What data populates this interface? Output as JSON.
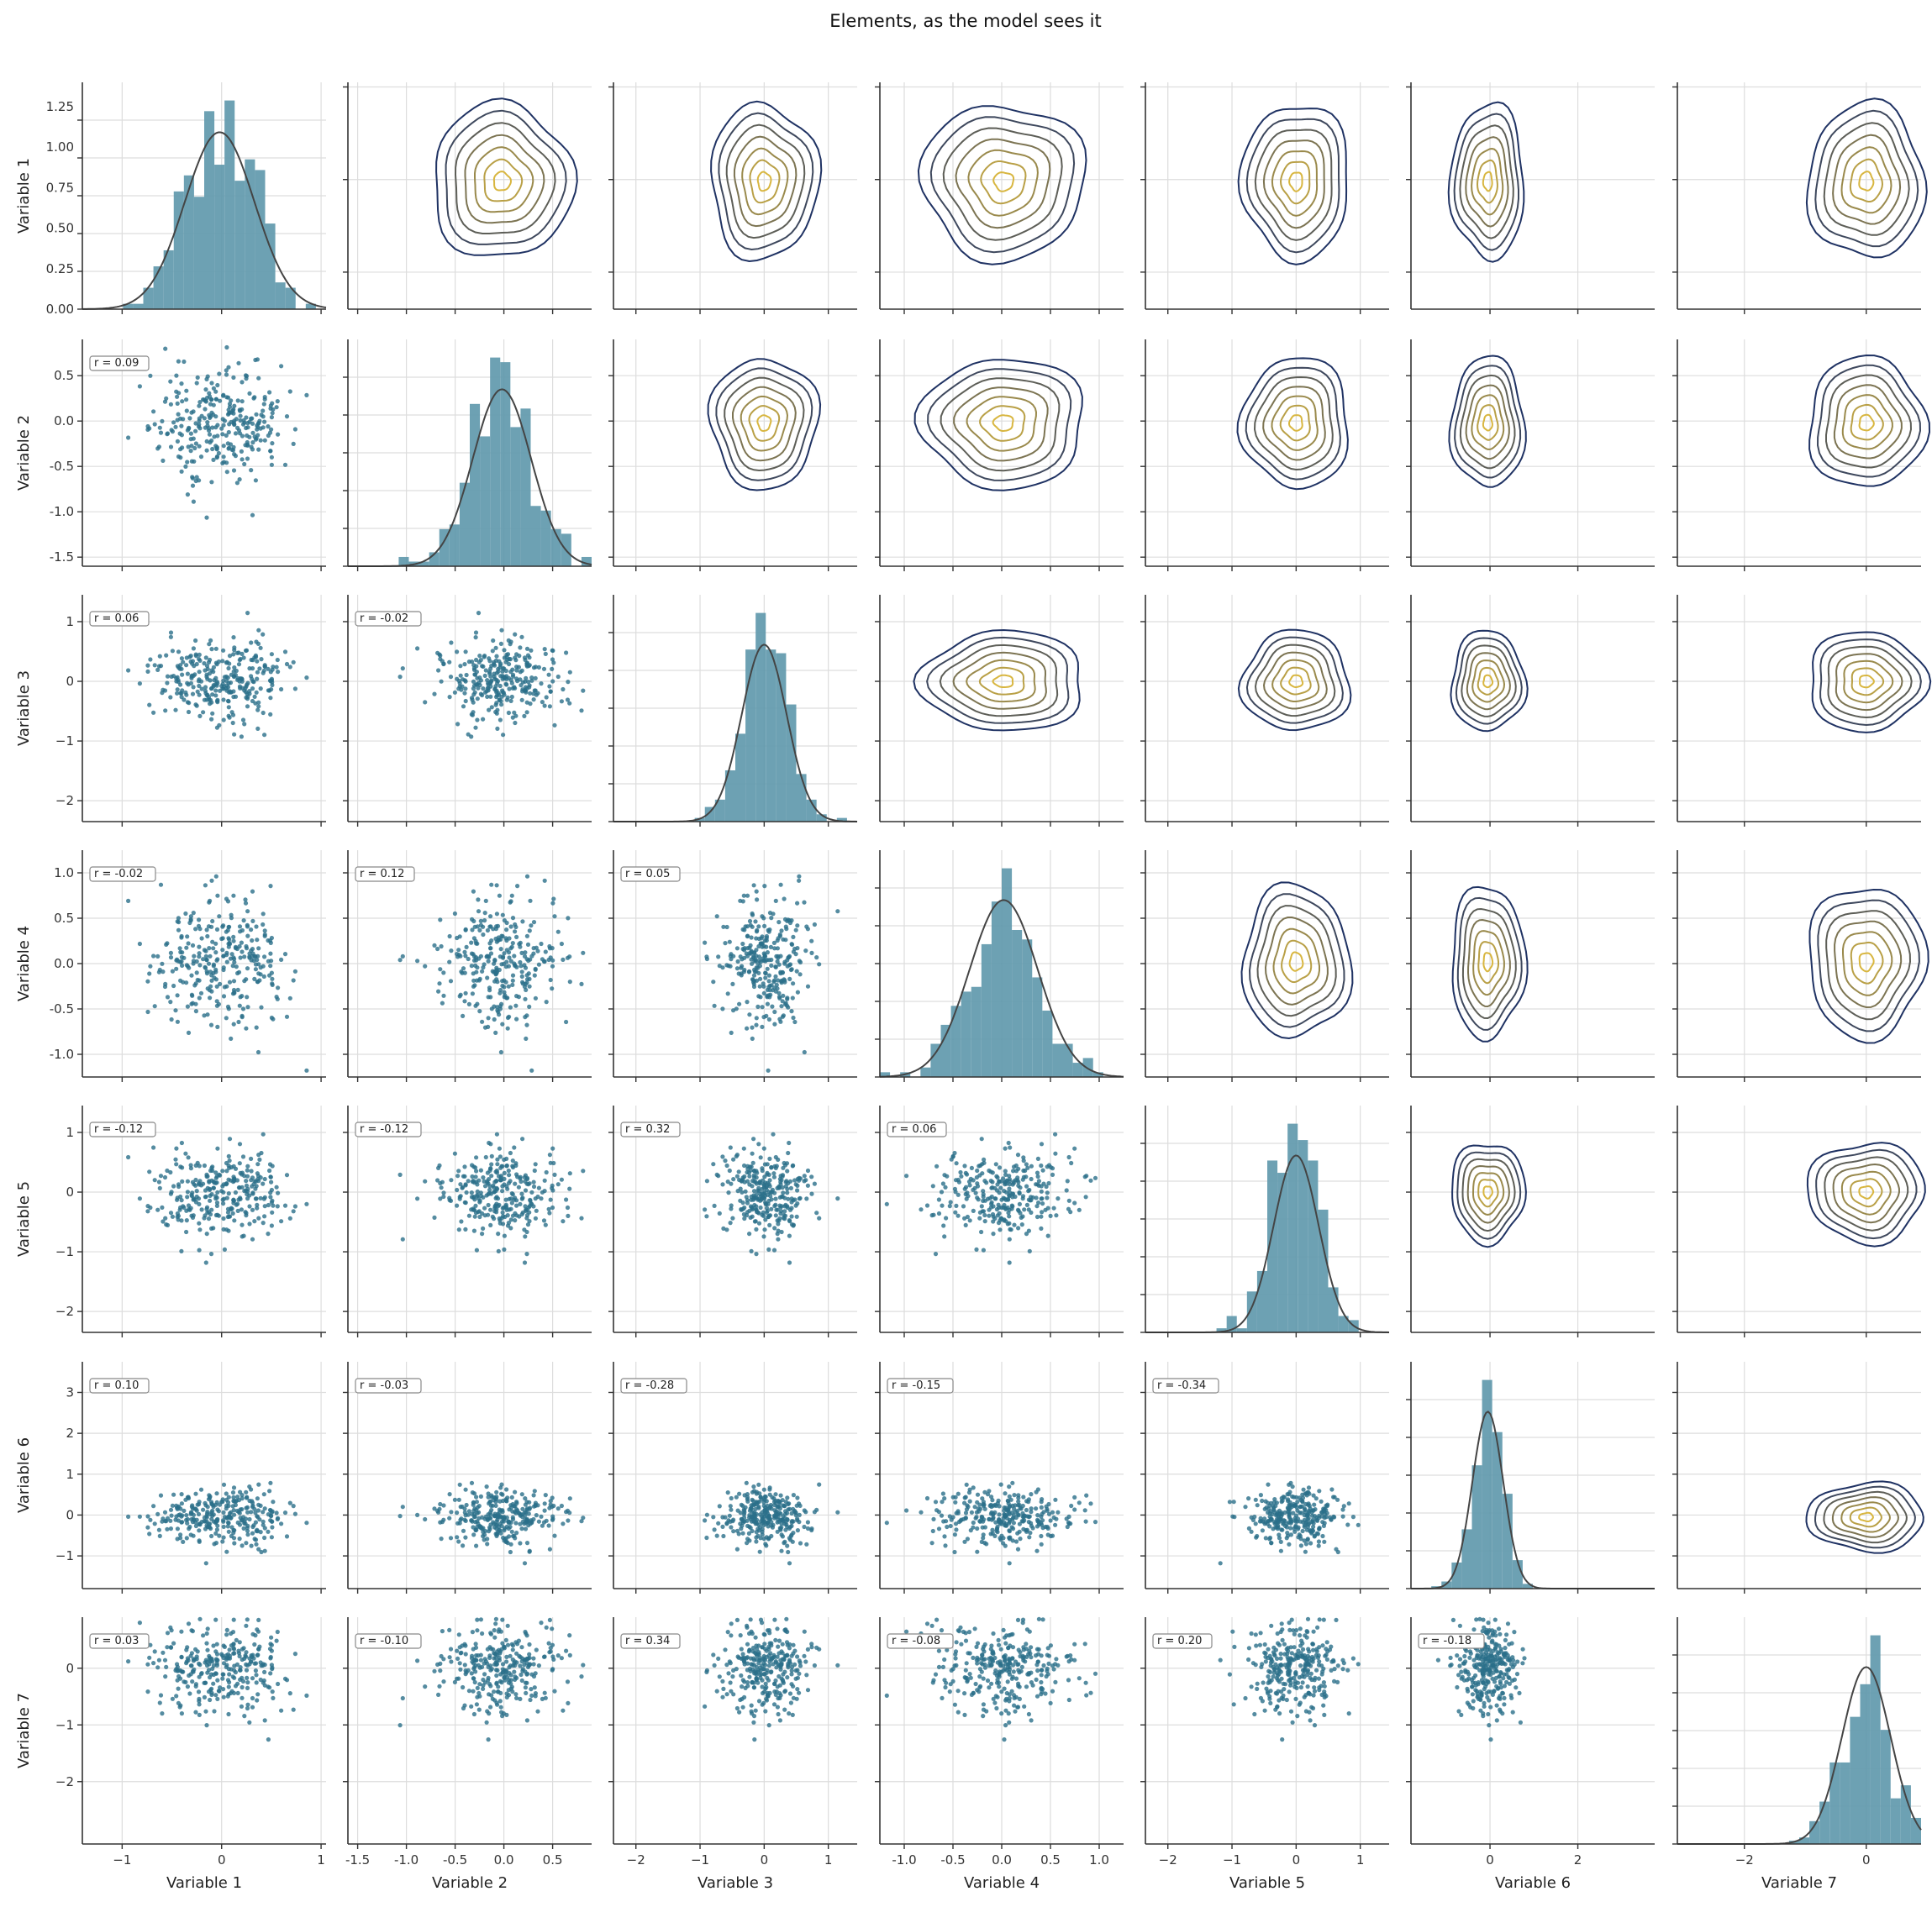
{
  "chart_data": {
    "type": "pairplot",
    "title": "Elements, as the model sees it",
    "variables": [
      "Variable 1",
      "Variable 2",
      "Variable 3",
      "Variable 4",
      "Variable 5",
      "Variable 6",
      "Variable 7"
    ],
    "lower_panels": "scatter",
    "upper_panels": "kde-contour",
    "diagonal_panels": "histogram with normal fit",
    "grid": true,
    "colors": {
      "points": "#2a6f8a",
      "hist": "#5d97ab",
      "fit_line": "#444444",
      "contour_low": "#1f3263",
      "contour_high": "#d8b640"
    },
    "axes": [
      {
        "name": "Variable 1",
        "range": [
          -1.4,
          1.05
        ],
        "ticks": [
          -1,
          0,
          1
        ],
        "mean": -0.02,
        "sd": 0.35,
        "n": 300,
        "hist_ylim": [
          0,
          1.4
        ],
        "hist_yticks": [
          "0.00",
          "0.25",
          "0.50",
          "0.75",
          "1.00",
          "1.25"
        ]
      },
      {
        "name": "Variable 2",
        "range": [
          -1.6,
          0.9
        ],
        "ticks": [
          -1.5,
          -1.0,
          -0.5,
          0.0,
          0.5
        ],
        "tick_labels": [
          "-1.5",
          "-1.0",
          "-0.5",
          "0.0",
          "0.5"
        ],
        "mean": -0.02,
        "sd": 0.3,
        "n": 300
      },
      {
        "name": "Variable 3",
        "range": [
          -2.35,
          1.45
        ],
        "ticks": [
          -2,
          -1,
          0,
          1
        ],
        "mean": 0.0,
        "sd": 0.35,
        "n": 300
      },
      {
        "name": "Variable 4",
        "range": [
          -1.25,
          1.25
        ],
        "ticks": [
          -1.0,
          -0.5,
          0.0,
          0.5,
          1.0
        ],
        "tick_labels": [
          "-1.0",
          "-0.5",
          "0.0",
          "0.5",
          "1.0"
        ],
        "mean": 0.02,
        "sd": 0.35,
        "n": 300
      },
      {
        "name": "Variable 5",
        "range": [
          -2.35,
          1.45
        ],
        "ticks": [
          -2,
          -1,
          0,
          1
        ],
        "mean": 0.0,
        "sd": 0.35,
        "n": 300
      },
      {
        "name": "Variable 6",
        "range": [
          -1.8,
          3.75
        ],
        "ticks": [
          -1,
          0,
          1,
          2,
          3
        ],
        "x_ticks": [
          0,
          2
        ],
        "mean": -0.05,
        "sd": 0.35,
        "n": 300
      },
      {
        "name": "Variable 7",
        "range": [
          -3.1,
          0.9
        ],
        "ticks": [
          -2,
          -1,
          0
        ],
        "x_ticks": [
          -2,
          0
        ],
        "mean": 0.0,
        "sd": 0.4,
        "n": 300
      }
    ],
    "correlations": [
      {
        "row": "Variable 2",
        "col": "Variable 1",
        "label": "r = 0.09"
      },
      {
        "row": "Variable 3",
        "col": "Variable 1",
        "label": "r = 0.06"
      },
      {
        "row": "Variable 3",
        "col": "Variable 2",
        "label": "r = -0.02"
      },
      {
        "row": "Variable 4",
        "col": "Variable 1",
        "label": "r = -0.02"
      },
      {
        "row": "Variable 4",
        "col": "Variable 2",
        "label": "r = 0.12"
      },
      {
        "row": "Variable 4",
        "col": "Variable 3",
        "label": "r = 0.05"
      },
      {
        "row": "Variable 5",
        "col": "Variable 1",
        "label": "r = -0.12"
      },
      {
        "row": "Variable 5",
        "col": "Variable 2",
        "label": "r = -0.12"
      },
      {
        "row": "Variable 5",
        "col": "Variable 3",
        "label": "r = 0.32"
      },
      {
        "row": "Variable 5",
        "col": "Variable 4",
        "label": "r = 0.06"
      },
      {
        "row": "Variable 6",
        "col": "Variable 1",
        "label": "r = 0.10"
      },
      {
        "row": "Variable 6",
        "col": "Variable 2",
        "label": "r = -0.03"
      },
      {
        "row": "Variable 6",
        "col": "Variable 3",
        "label": "r = -0.28"
      },
      {
        "row": "Variable 6",
        "col": "Variable 4",
        "label": "r = -0.15"
      },
      {
        "row": "Variable 6",
        "col": "Variable 5",
        "label": "r = -0.34"
      },
      {
        "row": "Variable 7",
        "col": "Variable 1",
        "label": "r = 0.03"
      },
      {
        "row": "Variable 7",
        "col": "Variable 2",
        "label": "r = -0.10"
      },
      {
        "row": "Variable 7",
        "col": "Variable 3",
        "label": "r = 0.34"
      },
      {
        "row": "Variable 7",
        "col": "Variable 4",
        "label": "r = -0.08"
      },
      {
        "row": "Variable 7",
        "col": "Variable 5",
        "label": "r = 0.20"
      },
      {
        "row": "Variable 7",
        "col": "Variable 6",
        "label": "r = -0.18"
      }
    ]
  }
}
